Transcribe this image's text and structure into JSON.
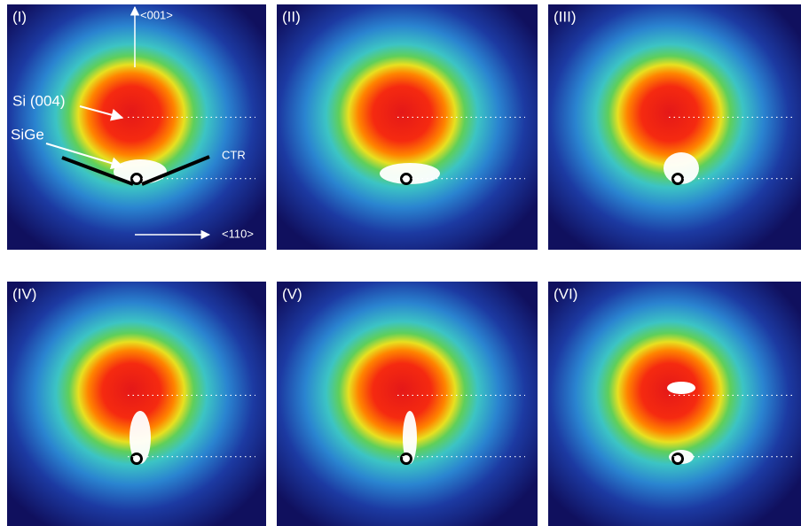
{
  "panels": [
    {
      "label": "(I)"
    },
    {
      "label": "(II)"
    },
    {
      "label": "(III)"
    },
    {
      "label": "(IV)"
    },
    {
      "label": "(V)"
    },
    {
      "label": "(VI)"
    }
  ],
  "annotations": {
    "axis_001": "<001>",
    "axis_110": "<110>",
    "si004": "Si (004)",
    "sige": "SiGe",
    "ctr": "CTR"
  }
}
